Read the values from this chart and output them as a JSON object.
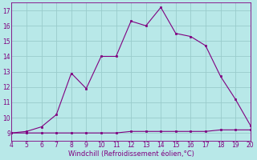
{
  "x": [
    4,
    5,
    6,
    7,
    8,
    9,
    10,
    11,
    12,
    13,
    14,
    15,
    16,
    17,
    18,
    19,
    20
  ],
  "y_main": [
    9.0,
    9.1,
    9.4,
    10.2,
    12.9,
    11.9,
    14.0,
    14.0,
    16.3,
    16.0,
    17.2,
    15.5,
    15.3,
    14.7,
    12.7,
    11.2,
    9.5
  ],
  "y_flat": [
    9.0,
    9.0,
    9.0,
    9.0,
    9.0,
    9.0,
    9.0,
    9.0,
    9.1,
    9.1,
    9.1,
    9.1,
    9.1,
    9.1,
    9.2,
    9.2,
    9.2
  ],
  "xlabel": "Windchill (Refroidissement éolien,°C)",
  "xlim": [
    4,
    20
  ],
  "ylim": [
    8.5,
    17.5
  ],
  "xticks": [
    4,
    5,
    6,
    7,
    8,
    9,
    10,
    11,
    12,
    13,
    14,
    15,
    16,
    17,
    18,
    19,
    20
  ],
  "yticks": [
    9,
    10,
    11,
    12,
    13,
    14,
    15,
    16,
    17
  ],
  "line_color": "#800080",
  "bg_color": "#b8e8e8",
  "grid_color": "#99cccc",
  "marker": "s",
  "markersize": 2,
  "linewidth": 0.8,
  "tick_fontsize": 5.5,
  "xlabel_fontsize": 6.0
}
